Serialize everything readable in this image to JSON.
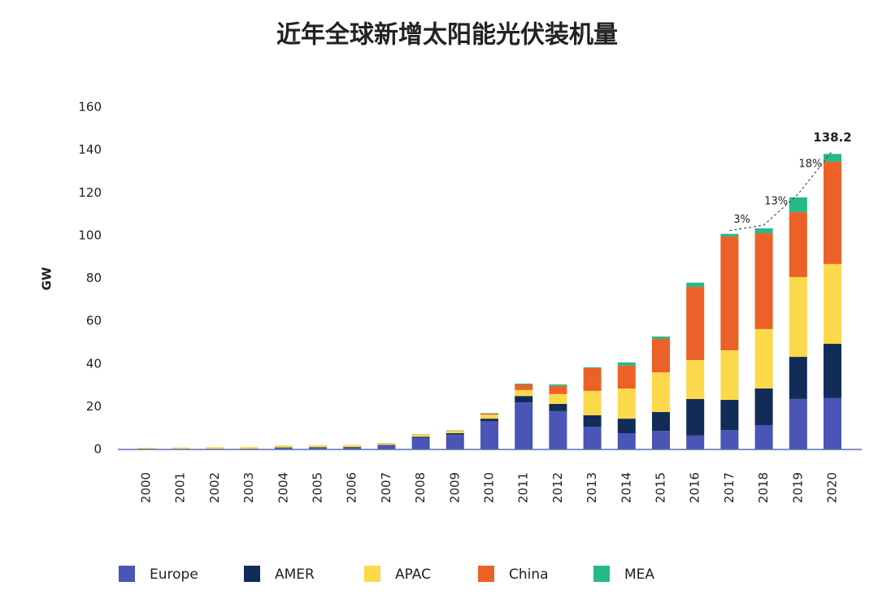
{
  "chart_data": {
    "type": "stacked-bar",
    "title": "近年全球新增太阳能光伏装机量",
    "y_label": "GW",
    "categories": [
      "2000",
      "2001",
      "2002",
      "2003",
      "2004",
      "2005",
      "2006",
      "2007",
      "2008",
      "2009",
      "2010",
      "2011",
      "2012",
      "2013",
      "2014",
      "2015",
      "2016",
      "2017",
      "2018",
      "2019",
      "2020"
    ],
    "series": [
      {
        "name": "Europe",
        "color": "#4a55b5",
        "values": [
          0.1,
          0.1,
          0.2,
          0.3,
          0.9,
          1.0,
          1.0,
          2.0,
          5.5,
          7.0,
          13.3,
          22,
          17.9,
          10.6,
          7.6,
          8.7,
          6.5,
          9.1,
          11.4,
          23.6,
          24
        ]
      },
      {
        "name": "AMER",
        "color": "#122c58",
        "values": [
          0.1,
          0.1,
          0.1,
          0.1,
          0.1,
          0.1,
          0.2,
          0.2,
          0.4,
          0.6,
          1.1,
          3,
          3.4,
          5.4,
          6.8,
          8.8,
          17.1,
          14.1,
          17.1,
          19.7,
          25.4
        ]
      },
      {
        "name": "APAC",
        "color": "#fcd94a",
        "values": [
          0.6,
          0.7,
          0.8,
          0.8,
          0.9,
          0.9,
          0.9,
          0.7,
          1.0,
          1.0,
          1.9,
          2.8,
          4.6,
          11.4,
          14.1,
          18.6,
          18.2,
          23.2,
          27.8,
          37.3,
          37.3
        ]
      },
      {
        "name": "China",
        "color": "#ec6127",
        "values": [
          0,
          0,
          0,
          0,
          0,
          0,
          0,
          0,
          0.1,
          0.2,
          0.5,
          2.6,
          3.8,
          10.6,
          10.7,
          15.6,
          34.2,
          53.2,
          44.8,
          30.4,
          47.9
        ]
      },
      {
        "name": "MEA",
        "color": "#27b98a",
        "values": [
          0,
          0,
          0,
          0,
          0,
          0,
          0,
          0.1,
          0.1,
          0.1,
          0.2,
          0.4,
          0.7,
          0.4,
          1.5,
          1.1,
          2,
          1.2,
          2.3,
          6.9,
          3.6
        ]
      }
    ],
    "annotations": [
      "3%",
      "13%",
      "18%",
      "138.2"
    ],
    "ylim": [
      0,
      160
    ],
    "yticks": [
      0,
      20,
      40,
      60,
      80,
      100,
      120,
      140,
      160
    ],
    "grid": false
  }
}
